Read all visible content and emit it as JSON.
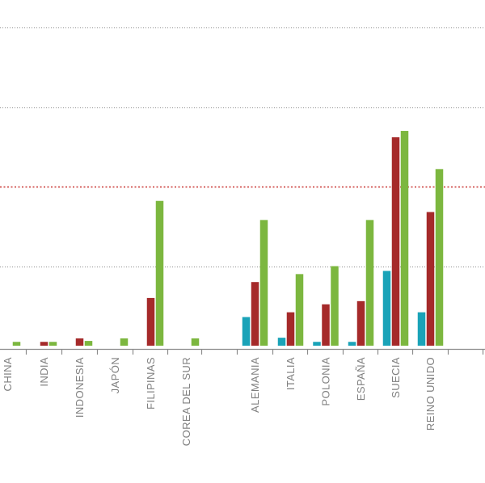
{
  "chart_data": {
    "type": "bar",
    "title": "",
    "xlabel": "",
    "ylabel": "",
    "categories": [
      "CHINA",
      "INDIA",
      "INDONESIA",
      "JAPÓN",
      "FILIPINAS",
      "COREA DEL SUR",
      "",
      "ALEMANIA",
      "ITALIA",
      "POLONIA",
      "ESPAÑA",
      "SUECIA",
      "REINO UNIDO",
      ""
    ],
    "series": [
      {
        "color": "#1aa3b8",
        "values": [
          0,
          0,
          0,
          0,
          0,
          0,
          0,
          0.9,
          0.25,
          0.12,
          0.12,
          2.35,
          1.05,
          0
        ]
      },
      {
        "color": "#a52a2a",
        "values": [
          0,
          0.12,
          0.23,
          0,
          1.5,
          0,
          0,
          2.0,
          1.05,
          1.3,
          1.4,
          6.55,
          4.2,
          0
        ]
      },
      {
        "color": "#7cb73f",
        "values": [
          0.12,
          0.12,
          0.15,
          0.23,
          4.55,
          0.23,
          0,
          3.95,
          2.25,
          2.5,
          3.95,
          6.75,
          5.55,
          0
        ]
      }
    ],
    "ylim": [
      0,
      10
    ],
    "gridlines": [
      2.5,
      7.5,
      10
    ],
    "reference_line": {
      "value": 5,
      "color": "#c8302f"
    },
    "grid": true
  }
}
